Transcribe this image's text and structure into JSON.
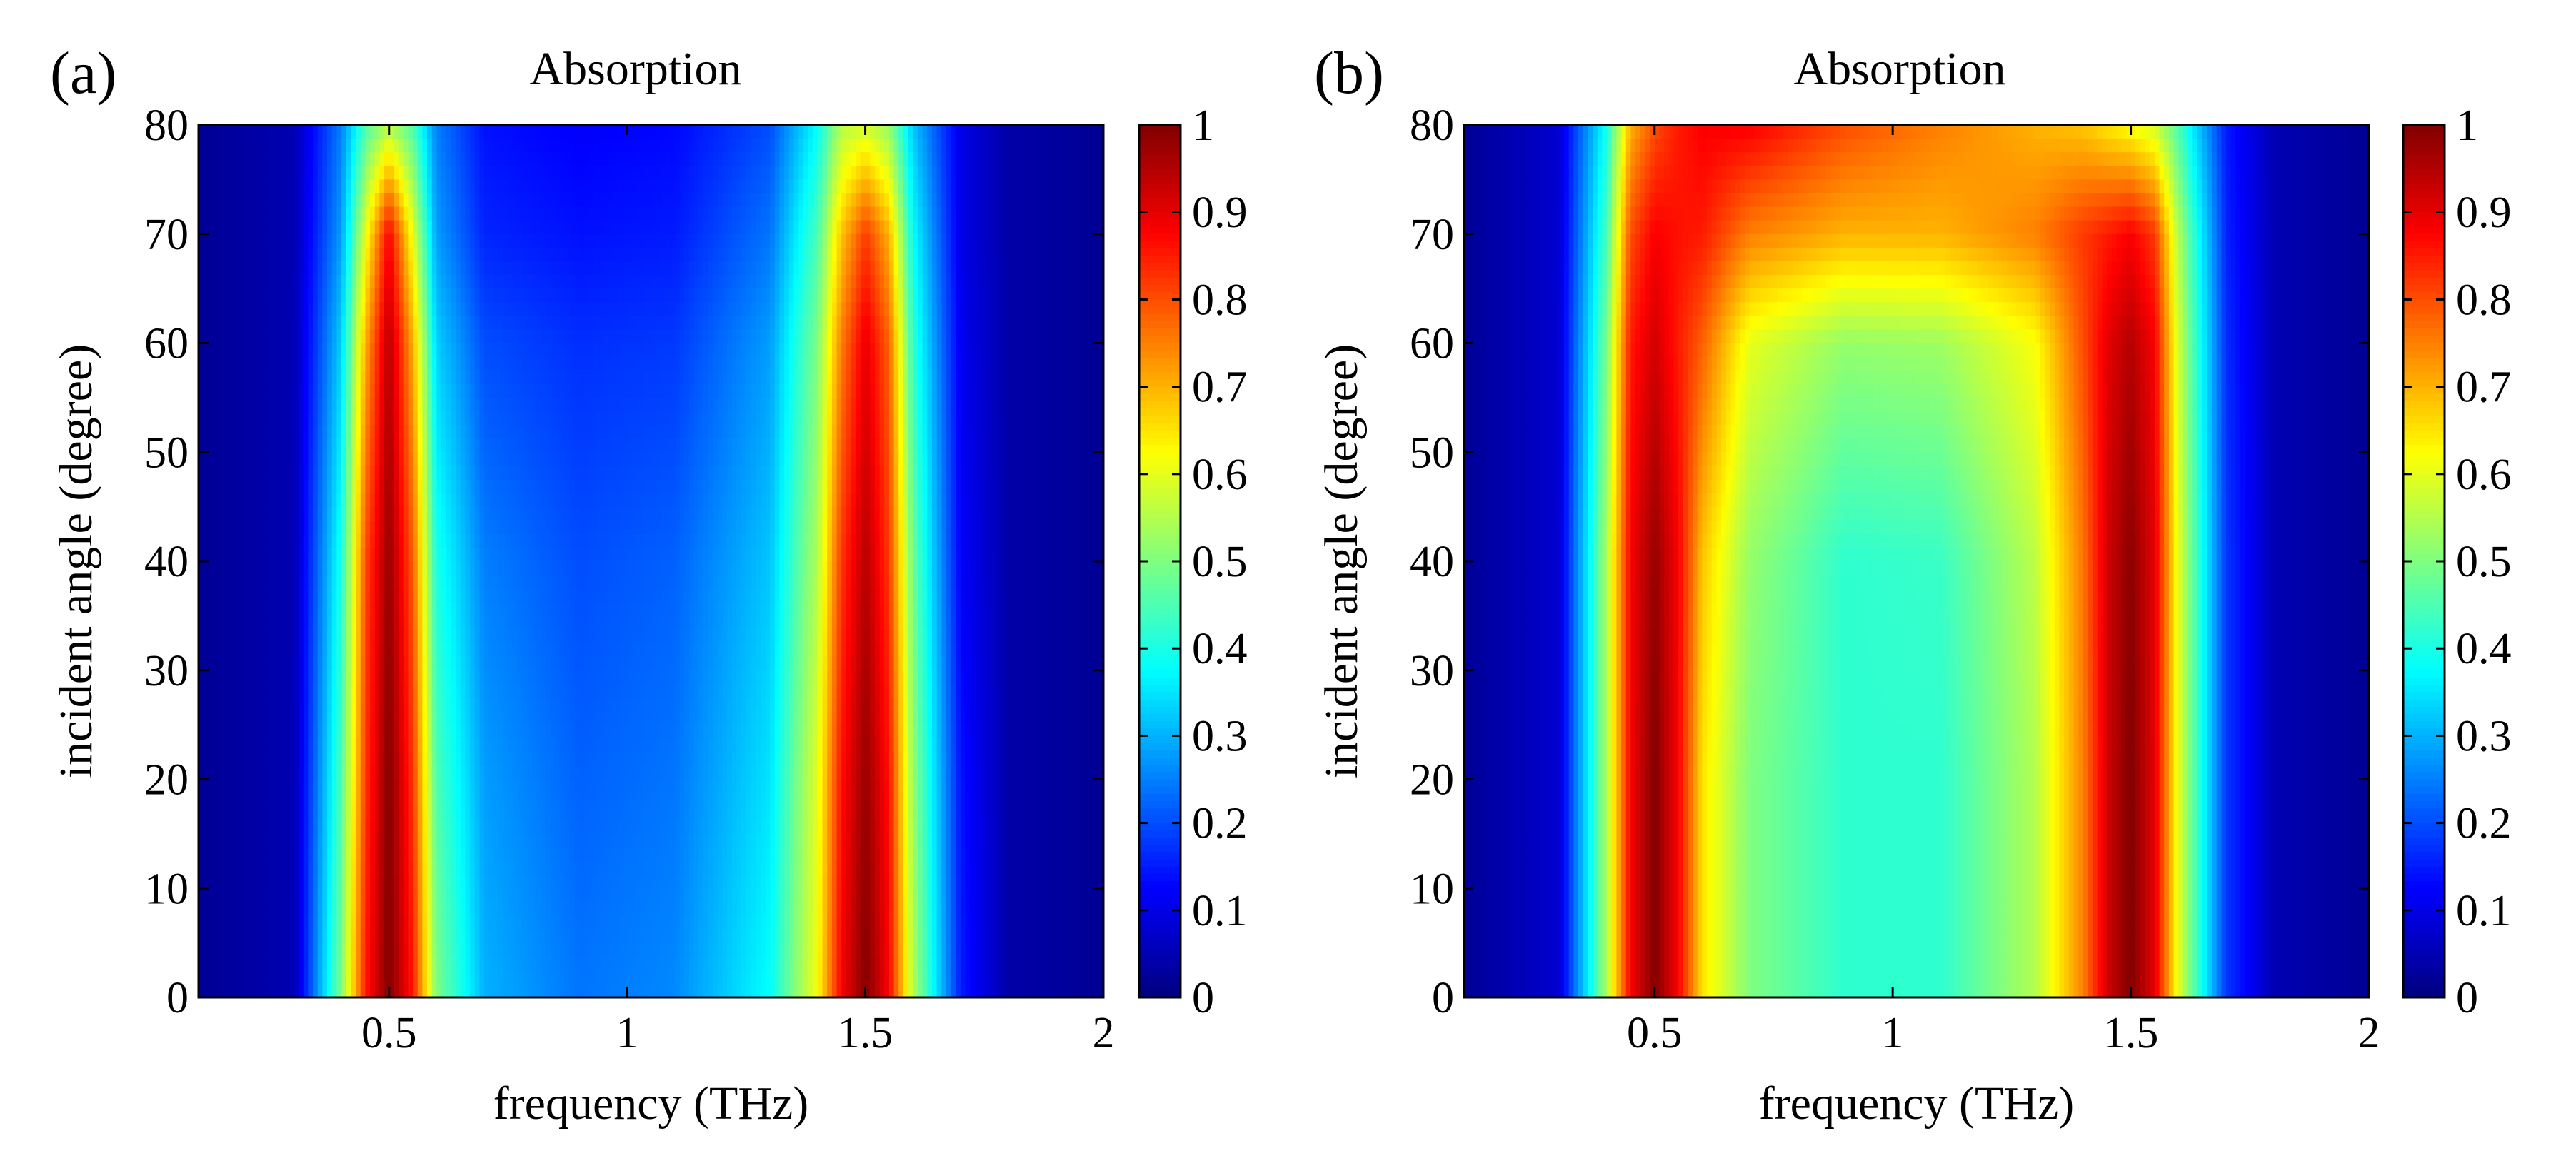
{
  "chart_data": [
    {
      "panel_label": "(a)",
      "type": "heatmap",
      "title": "Absorption",
      "xlabel": "frequency (THz)",
      "ylabel": "incident angle (degree)",
      "xlim": [
        0.1,
        2
      ],
      "ylim": [
        0,
        80
      ],
      "xticks": [
        0.5,
        1,
        1.5,
        2
      ],
      "xtick_labels": [
        "0.5",
        "1",
        "1.5",
        "2"
      ],
      "yticks": [
        0,
        10,
        20,
        30,
        40,
        50,
        60,
        70,
        80
      ],
      "ytick_labels": [
        "0",
        "10",
        "20",
        "30",
        "40",
        "50",
        "60",
        "70",
        "80"
      ],
      "colormap": "jet",
      "clim": [
        0,
        1
      ],
      "colorbar_ticks": [
        0,
        0.1,
        0.2,
        0.3,
        0.4,
        0.5,
        0.6,
        0.7,
        0.8,
        0.9,
        1
      ],
      "colorbar_tick_labels": [
        "0",
        "0.1",
        "0.2",
        "0.3",
        "0.4",
        "0.5",
        "0.6",
        "0.7",
        "0.8",
        "0.9",
        "1"
      ],
      "grid": {
        "frequency": [
          0.1,
          0.3,
          0.4,
          0.45,
          0.5,
          0.55,
          0.6,
          0.7,
          0.9,
          1.1,
          1.3,
          1.4,
          1.45,
          1.5,
          1.55,
          1.6,
          1.7,
          1.8,
          2.0
        ],
        "angle": [
          0,
          20,
          40,
          60,
          70,
          80
        ],
        "absorption": [
          [
            0.02,
            0.05,
            0.5,
            0.85,
            1.0,
            0.85,
            0.5,
            0.3,
            0.24,
            0.26,
            0.38,
            0.62,
            0.88,
            1.0,
            0.88,
            0.55,
            0.15,
            0.04,
            0.02
          ],
          [
            0.02,
            0.05,
            0.45,
            0.82,
            1.0,
            0.82,
            0.45,
            0.28,
            0.22,
            0.24,
            0.35,
            0.6,
            0.86,
            0.98,
            0.86,
            0.52,
            0.14,
            0.04,
            0.02
          ],
          [
            0.02,
            0.05,
            0.4,
            0.8,
            0.98,
            0.78,
            0.4,
            0.25,
            0.2,
            0.22,
            0.32,
            0.55,
            0.82,
            0.95,
            0.82,
            0.48,
            0.12,
            0.04,
            0.02
          ],
          [
            0.02,
            0.05,
            0.33,
            0.7,
            0.95,
            0.7,
            0.33,
            0.2,
            0.17,
            0.18,
            0.28,
            0.5,
            0.75,
            0.9,
            0.78,
            0.42,
            0.11,
            0.04,
            0.02
          ],
          [
            0.02,
            0.05,
            0.28,
            0.6,
            0.88,
            0.6,
            0.28,
            0.16,
            0.14,
            0.15,
            0.24,
            0.45,
            0.68,
            0.82,
            0.7,
            0.38,
            0.1,
            0.04,
            0.02
          ],
          [
            0.02,
            0.05,
            0.25,
            0.45,
            0.55,
            0.45,
            0.25,
            0.14,
            0.12,
            0.13,
            0.2,
            0.38,
            0.55,
            0.58,
            0.52,
            0.32,
            0.1,
            0.04,
            0.02
          ]
        ]
      }
    },
    {
      "panel_label": "(b)",
      "type": "heatmap",
      "title": "Absorption",
      "xlabel": "frequency (THz)",
      "ylabel": "incident angle (degree)",
      "xlim": [
        0.1,
        2
      ],
      "ylim": [
        0,
        80
      ],
      "xticks": [
        0.5,
        1,
        1.5,
        2
      ],
      "xtick_labels": [
        "0.5",
        "1",
        "1.5",
        "2"
      ],
      "yticks": [
        0,
        10,
        20,
        30,
        40,
        50,
        60,
        70,
        80
      ],
      "ytick_labels": [
        "0",
        "10",
        "20",
        "30",
        "40",
        "50",
        "60",
        "70",
        "80"
      ],
      "colormap": "jet",
      "clim": [
        0,
        1
      ],
      "colorbar_ticks": [
        0,
        0.1,
        0.2,
        0.3,
        0.4,
        0.5,
        0.6,
        0.7,
        0.8,
        0.9,
        1
      ],
      "colorbar_tick_labels": [
        "0",
        "0.1",
        "0.2",
        "0.3",
        "0.4",
        "0.5",
        "0.6",
        "0.7",
        "0.8",
        "0.9",
        "1"
      ],
      "grid": {
        "frequency": [
          0.1,
          0.3,
          0.4,
          0.45,
          0.5,
          0.55,
          0.6,
          0.7,
          0.9,
          1.1,
          1.3,
          1.4,
          1.45,
          1.5,
          1.55,
          1.6,
          1.7,
          1.8,
          2.0
        ],
        "angle": [
          0,
          20,
          40,
          60,
          70,
          80
        ],
        "absorption": [
          [
            0.02,
            0.08,
            0.55,
            0.88,
            1.0,
            0.88,
            0.65,
            0.5,
            0.42,
            0.42,
            0.55,
            0.75,
            0.92,
            1.0,
            0.9,
            0.6,
            0.18,
            0.05,
            0.02
          ],
          [
            0.02,
            0.08,
            0.55,
            0.88,
            1.0,
            0.88,
            0.65,
            0.5,
            0.42,
            0.42,
            0.55,
            0.75,
            0.92,
            1.0,
            0.9,
            0.6,
            0.18,
            0.05,
            0.02
          ],
          [
            0.02,
            0.08,
            0.55,
            0.88,
            0.98,
            0.88,
            0.68,
            0.52,
            0.42,
            0.43,
            0.56,
            0.76,
            0.92,
            0.99,
            0.9,
            0.6,
            0.18,
            0.05,
            0.02
          ],
          [
            0.02,
            0.08,
            0.5,
            0.85,
            0.92,
            0.85,
            0.78,
            0.6,
            0.52,
            0.53,
            0.62,
            0.8,
            0.9,
            0.95,
            0.88,
            0.58,
            0.17,
            0.05,
            0.02
          ],
          [
            0.02,
            0.08,
            0.45,
            0.8,
            0.88,
            0.86,
            0.85,
            0.75,
            0.7,
            0.7,
            0.75,
            0.82,
            0.85,
            0.88,
            0.82,
            0.55,
            0.16,
            0.05,
            0.02
          ],
          [
            0.02,
            0.08,
            0.4,
            0.7,
            0.8,
            0.85,
            0.88,
            0.88,
            0.8,
            0.75,
            0.7,
            0.68,
            0.65,
            0.62,
            0.58,
            0.45,
            0.15,
            0.05,
            0.02
          ]
        ]
      }
    }
  ]
}
